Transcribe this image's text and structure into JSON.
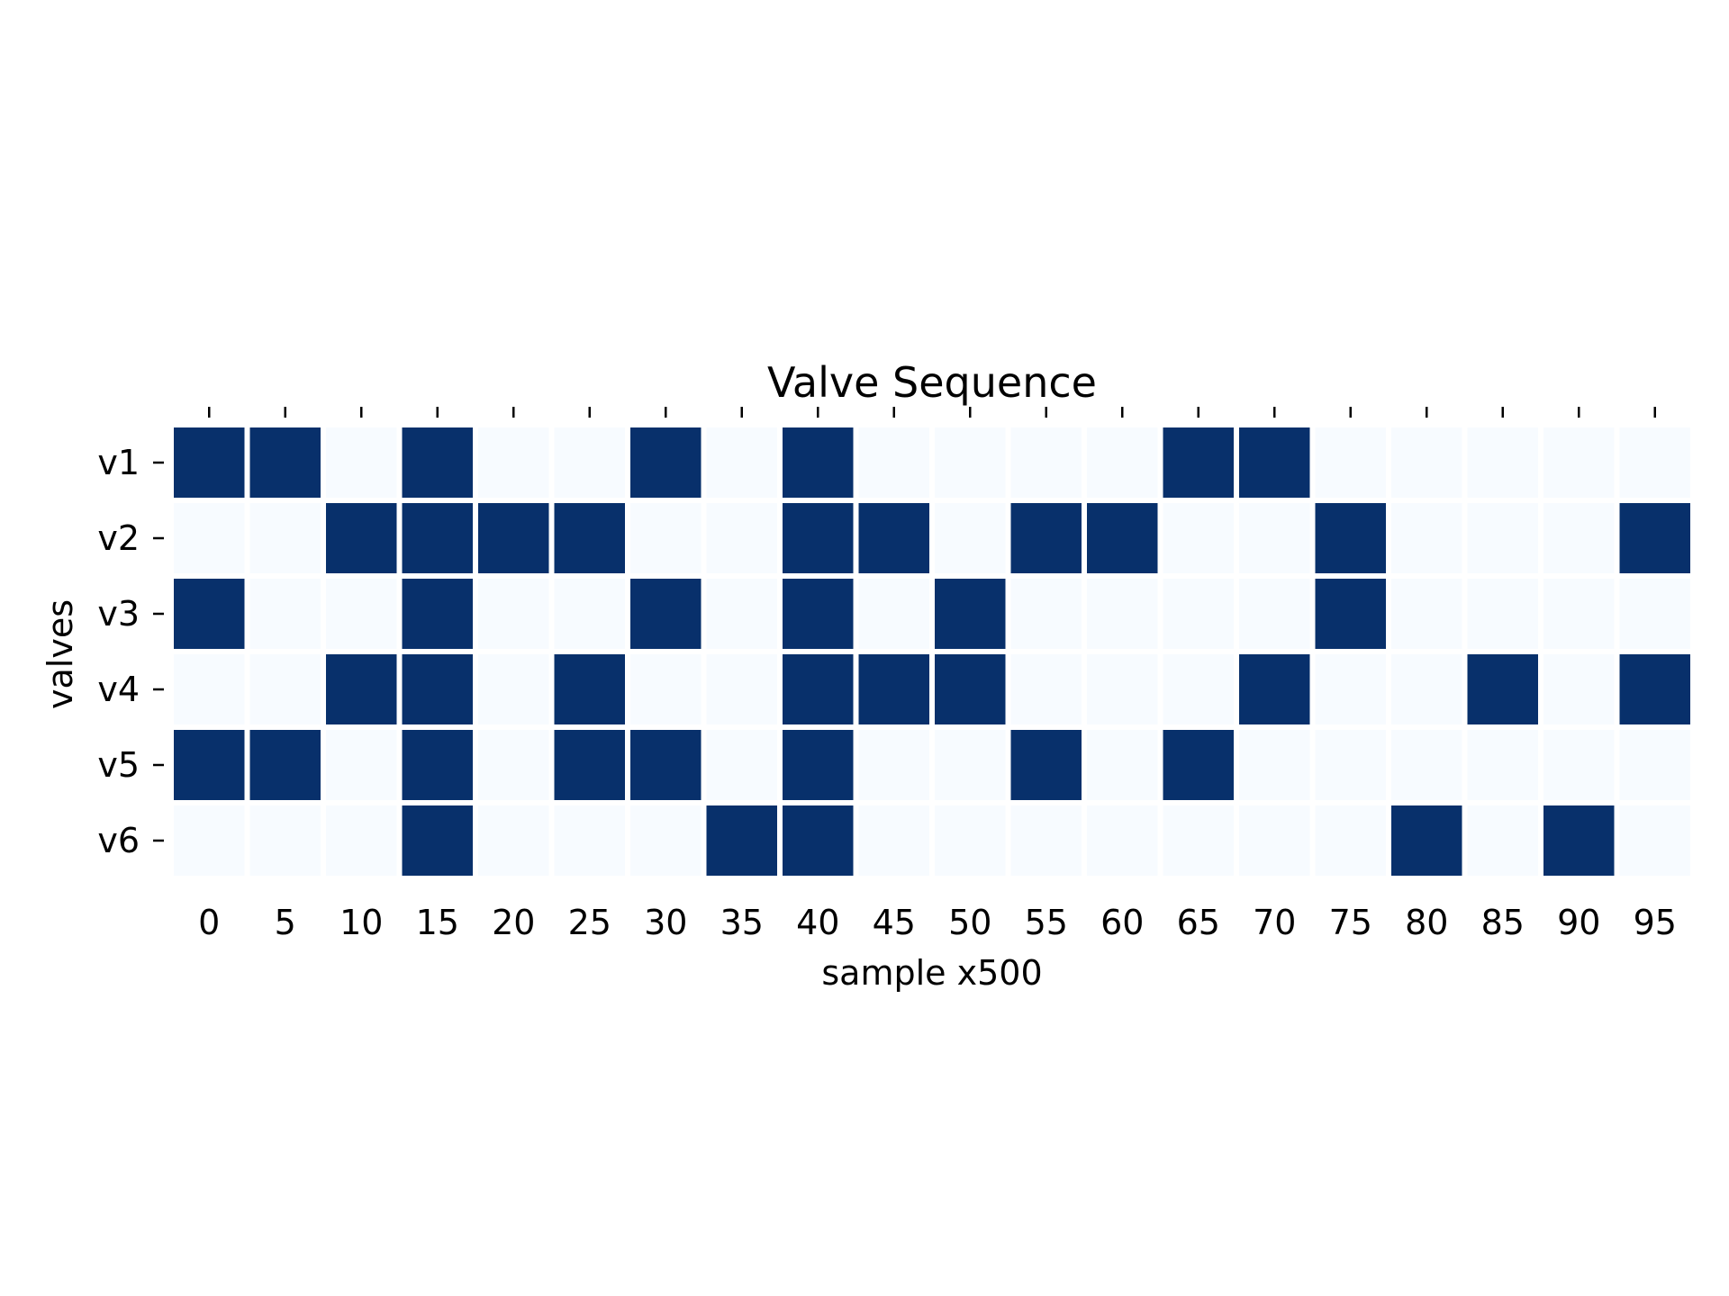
{
  "chart_data": {
    "type": "heatmap",
    "title": "Valve Sequence",
    "xlabel": "sample x500",
    "ylabel": "valves",
    "x": [
      "0",
      "5",
      "10",
      "15",
      "20",
      "25",
      "30",
      "35",
      "40",
      "45",
      "50",
      "55",
      "60",
      "65",
      "70",
      "75",
      "80",
      "85",
      "90",
      "95"
    ],
    "y": [
      "v1",
      "v2",
      "v3",
      "v4",
      "v5",
      "v6"
    ],
    "values": [
      [
        1,
        1,
        0,
        1,
        0,
        0,
        1,
        0,
        1,
        0,
        0,
        0,
        0,
        1,
        1,
        0,
        0,
        0,
        0,
        0
      ],
      [
        0,
        0,
        1,
        1,
        1,
        1,
        0,
        0,
        1,
        1,
        0,
        1,
        1,
        0,
        0,
        1,
        0,
        0,
        0,
        1
      ],
      [
        1,
        0,
        0,
        1,
        0,
        0,
        1,
        0,
        1,
        0,
        1,
        0,
        0,
        0,
        0,
        1,
        0,
        0,
        0,
        0
      ],
      [
        0,
        0,
        1,
        1,
        0,
        1,
        0,
        0,
        1,
        1,
        1,
        0,
        0,
        0,
        1,
        0,
        0,
        1,
        0,
        1
      ],
      [
        1,
        1,
        0,
        1,
        0,
        1,
        1,
        0,
        1,
        0,
        0,
        1,
        0,
        1,
        0,
        0,
        0,
        0,
        0,
        0
      ],
      [
        0,
        0,
        0,
        1,
        0,
        0,
        0,
        1,
        1,
        0,
        0,
        0,
        0,
        0,
        0,
        0,
        1,
        0,
        1,
        0
      ]
    ],
    "colors": {
      "on": "#08306b",
      "off": "#f7fbff"
    },
    "grid": false,
    "legend": "none"
  }
}
